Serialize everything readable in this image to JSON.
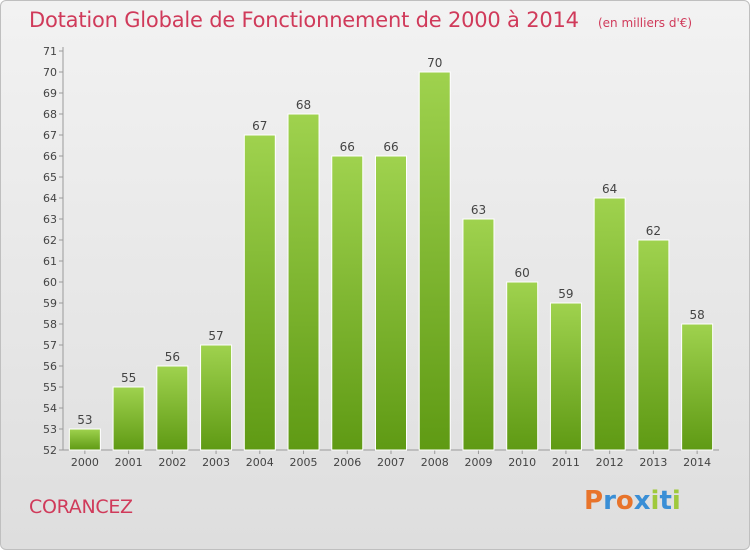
{
  "header": {
    "title": "Dotation Globale de Fonctionnement de 2000 à 2014",
    "subtitle": "(en milliers d'€)"
  },
  "footer": {
    "commune": "CORANCEZ",
    "logo_text": "Proxiti"
  },
  "colors": {
    "title": "#d03a5a",
    "bar_top": "#9fd24e",
    "bar_bottom": "#5f9a14",
    "logo_letters": [
      "#e8742b",
      "#3a8fd6",
      "#e8742b",
      "#3a8fd6",
      "#9fc93c",
      "#3a8fd6",
      "#9fc93c"
    ]
  },
  "chart_data": {
    "type": "bar",
    "title": "Dotation Globale de Fonctionnement de 2000 à 2014",
    "subtitle": "(en milliers d'€)",
    "categories": [
      "2000",
      "2001",
      "2002",
      "2003",
      "2004",
      "2005",
      "2006",
      "2007",
      "2008",
      "2009",
      "2010",
      "2011",
      "2012",
      "2013",
      "2014"
    ],
    "values": [
      53,
      55,
      56,
      57,
      67,
      68,
      66,
      66,
      70,
      63,
      60,
      59,
      64,
      62,
      58
    ],
    "ylim": [
      52,
      71
    ],
    "yticks": [
      52,
      53,
      54,
      55,
      56,
      57,
      58,
      59,
      60,
      61,
      62,
      63,
      64,
      65,
      66,
      67,
      68,
      69,
      70,
      71
    ],
    "xlabel": "",
    "ylabel": "",
    "grid": false,
    "legend": "none"
  }
}
